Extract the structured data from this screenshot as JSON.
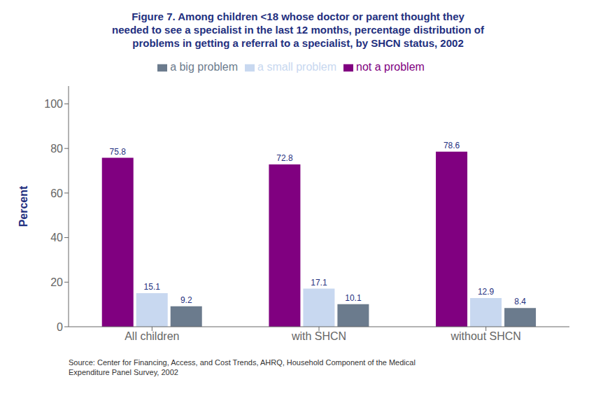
{
  "chart_data": {
    "type": "bar",
    "title": "Figure 7. Among children <18 whose doctor or parent thought they\nneeded to see a specialist in the last 12 months, percentage distribution of\nproblems in getting a referral to a specialist, by SHCN status, 2002",
    "categories": [
      "All children",
      "with SHCN",
      "without SHCN"
    ],
    "series": [
      {
        "name": "not a problem",
        "color": "#800080",
        "values": [
          75.8,
          72.8,
          78.6
        ]
      },
      {
        "name": "a small problem",
        "color": "#c8d8f0",
        "values": [
          15.1,
          17.1,
          12.9
        ]
      },
      {
        "name": "a big problem",
        "color": "#6b7b8d",
        "values": [
          9.2,
          10.1,
          8.4
        ]
      }
    ],
    "ylabel": "Percent",
    "ylim": [
      0,
      108
    ],
    "yticks": [
      0,
      20,
      40,
      60,
      80,
      100
    ],
    "grid": false,
    "legend": "top",
    "data_labels": true,
    "annotations": [
      "Source: Center for Financing, Access, and Cost Trends, AHRQ, Household Component of the Medical\nExpenditure Panel Survey, 2002"
    ]
  }
}
